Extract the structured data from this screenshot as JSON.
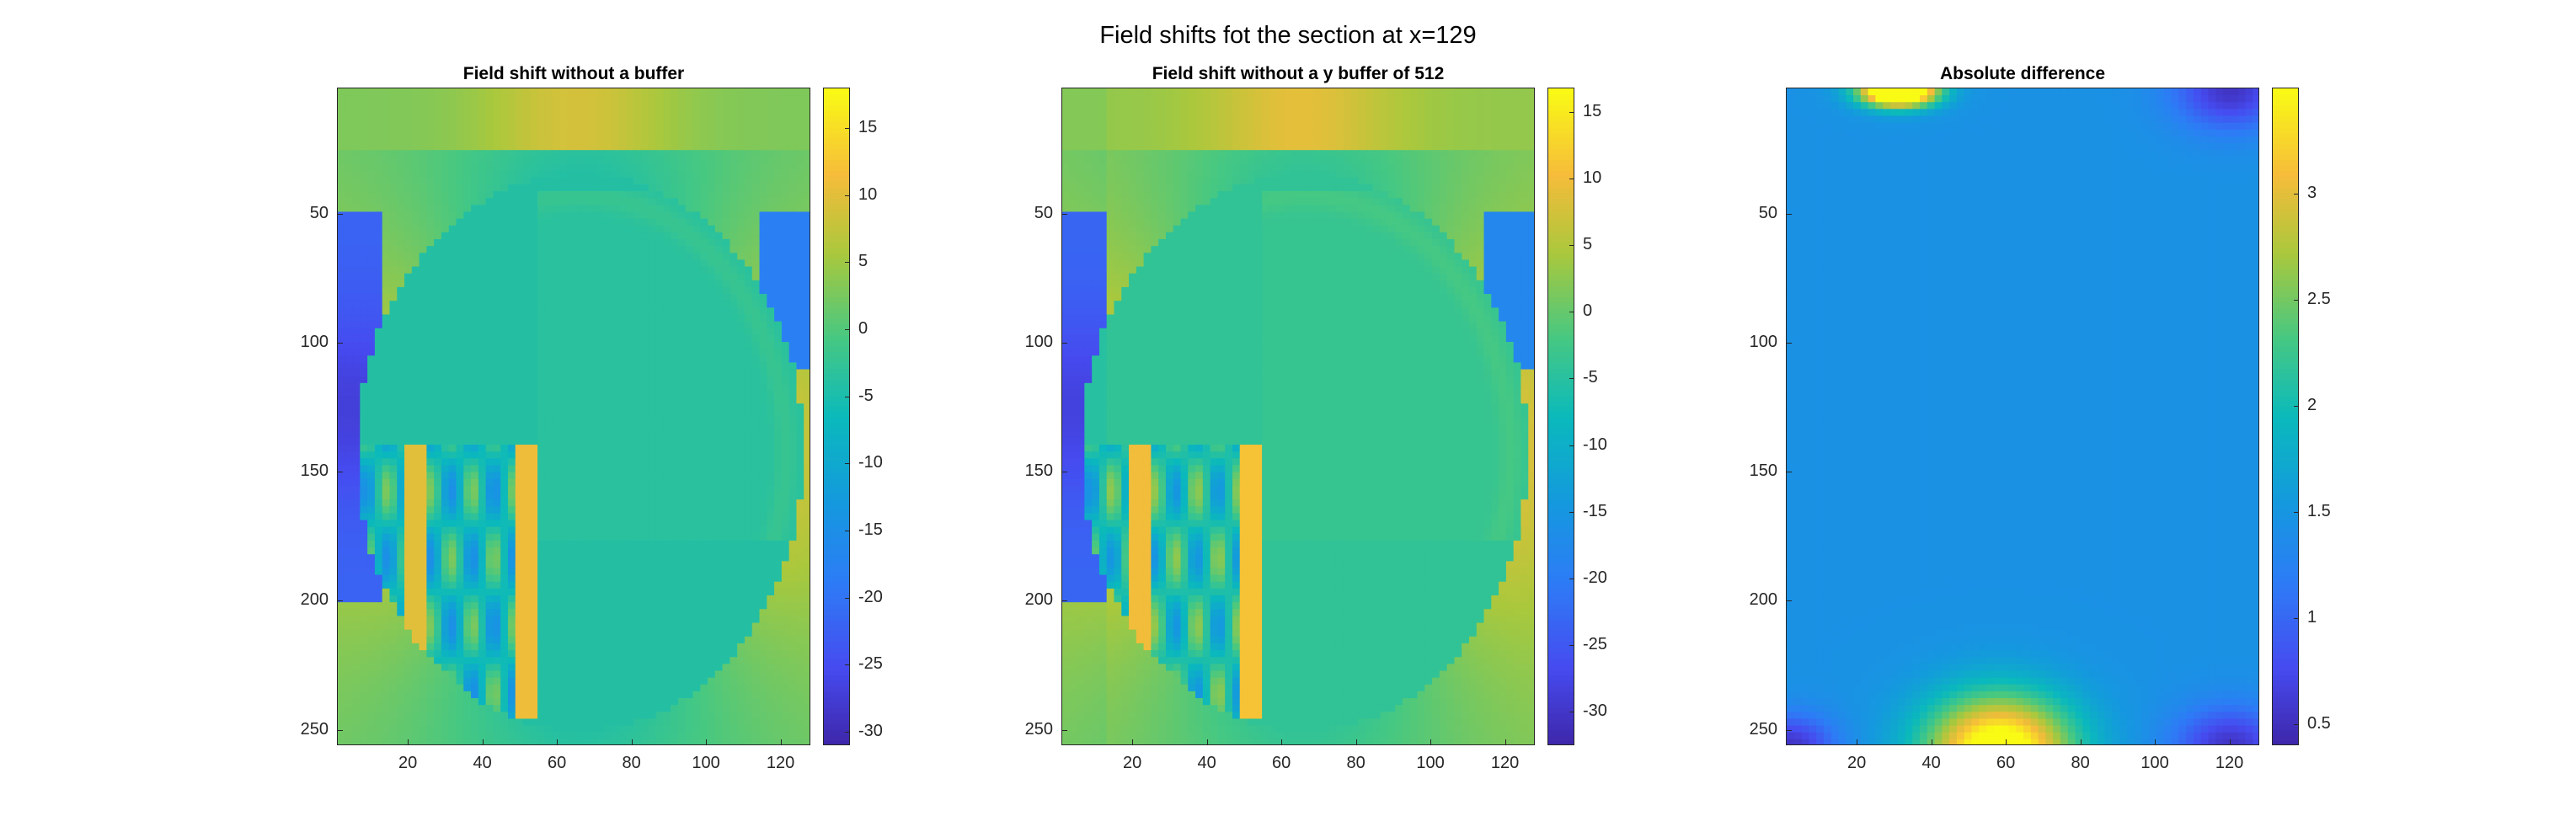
{
  "figure": {
    "title": "Field shifts fot the section at x=129"
  },
  "chart_data": [
    {
      "type": "heatmap",
      "title": "Field shift without a buffer",
      "xlabel": "",
      "ylabel": "",
      "xlim": [
        1,
        128
      ],
      "ylim": [
        1,
        256
      ],
      "y_reversed": true,
      "x_ticks": [
        20,
        40,
        60,
        80,
        100,
        120
      ],
      "y_ticks": [
        50,
        100,
        150,
        200,
        250
      ],
      "colorbar": {
        "colormap": "parula",
        "range": [
          -31,
          18
        ],
        "ticks": [
          -30,
          -25,
          -20,
          -15,
          -10,
          -5,
          0,
          5,
          10,
          15
        ]
      },
      "grid": false
    },
    {
      "type": "heatmap",
      "title": "Field shift without a y buffer of 512",
      "xlabel": "",
      "ylabel": "",
      "xlim": [
        1,
        128
      ],
      "ylim": [
        1,
        256
      ],
      "y_reversed": true,
      "x_ticks": [
        20,
        40,
        60,
        80,
        100,
        120
      ],
      "y_ticks": [
        50,
        100,
        150,
        200,
        250
      ],
      "colorbar": {
        "colormap": "parula",
        "range": [
          -32.5,
          16.8
        ],
        "ticks": [
          -30,
          -25,
          -20,
          -15,
          -10,
          -5,
          0,
          5,
          10,
          15
        ]
      },
      "grid": false
    },
    {
      "type": "heatmap",
      "title": "Absolute difference",
      "xlabel": "",
      "ylabel": "",
      "xlim": [
        1,
        128
      ],
      "ylim": [
        1,
        256
      ],
      "y_reversed": true,
      "x_ticks": [
        20,
        40,
        60,
        80,
        100,
        120
      ],
      "y_ticks": [
        50,
        100,
        150,
        200,
        250
      ],
      "colorbar": {
        "colormap": "parula",
        "range": [
          0.4,
          3.5
        ],
        "ticks": [
          0.5,
          1,
          1.5,
          2,
          2.5,
          3
        ]
      },
      "grid": false
    }
  ]
}
